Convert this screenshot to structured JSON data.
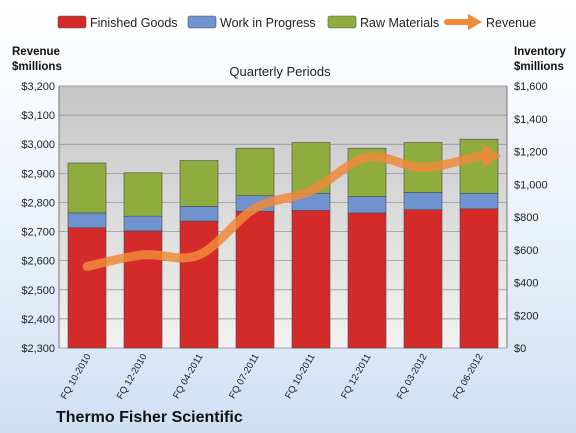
{
  "chart_data": {
    "type": "bar",
    "subtitle": "Quarterly Periods",
    "footer": "Thermo Fisher Scientific",
    "left_axis_title": [
      "Revenue",
      "$millions"
    ],
    "right_axis_title": [
      "Inventory",
      "$millions"
    ],
    "categories": [
      "FQ 10-2010",
      "FQ 12-2010",
      "FQ 04-2011",
      "FQ 07-2011",
      "FQ 10-2011",
      "FQ 12-2011",
      "FQ 03-2012",
      "FQ 06-2012"
    ],
    "stack_series": [
      {
        "name": "Finished Goods",
        "color": "#d42a2a",
        "values": [
          735,
          715,
          775,
          835,
          840,
          825,
          845,
          850
        ]
      },
      {
        "name": "Work in Progress",
        "color": "#6f93cf",
        "values": [
          90,
          90,
          90,
          95,
          105,
          100,
          105,
          95
        ]
      },
      {
        "name": "Raw Materials",
        "color": "#8fad3e",
        "values": [
          305,
          265,
          280,
          290,
          310,
          295,
          305,
          330
        ]
      }
    ],
    "line_series": {
      "name": "Revenue",
      "color": "#ee8a3a",
      "values": [
        2580,
        2620,
        2620,
        2780,
        2840,
        2955,
        2920,
        2960
      ]
    },
    "left_axis": {
      "min": 2300,
      "max": 3200,
      "step": 100,
      "ticks": [
        "$2,300",
        "$2,400",
        "$2,500",
        "$2,600",
        "$2,700",
        "$2,800",
        "$2,900",
        "$3,000",
        "$3,100",
        "$3,200"
      ]
    },
    "right_axis": {
      "min": 0,
      "max": 1600,
      "step": 200,
      "ticks": [
        "$0",
        "$200",
        "$400",
        "$600",
        "$800",
        "$1,000",
        "$1,200",
        "$1,400",
        "$1,600"
      ]
    },
    "grid": true,
    "legend_position": "top"
  }
}
